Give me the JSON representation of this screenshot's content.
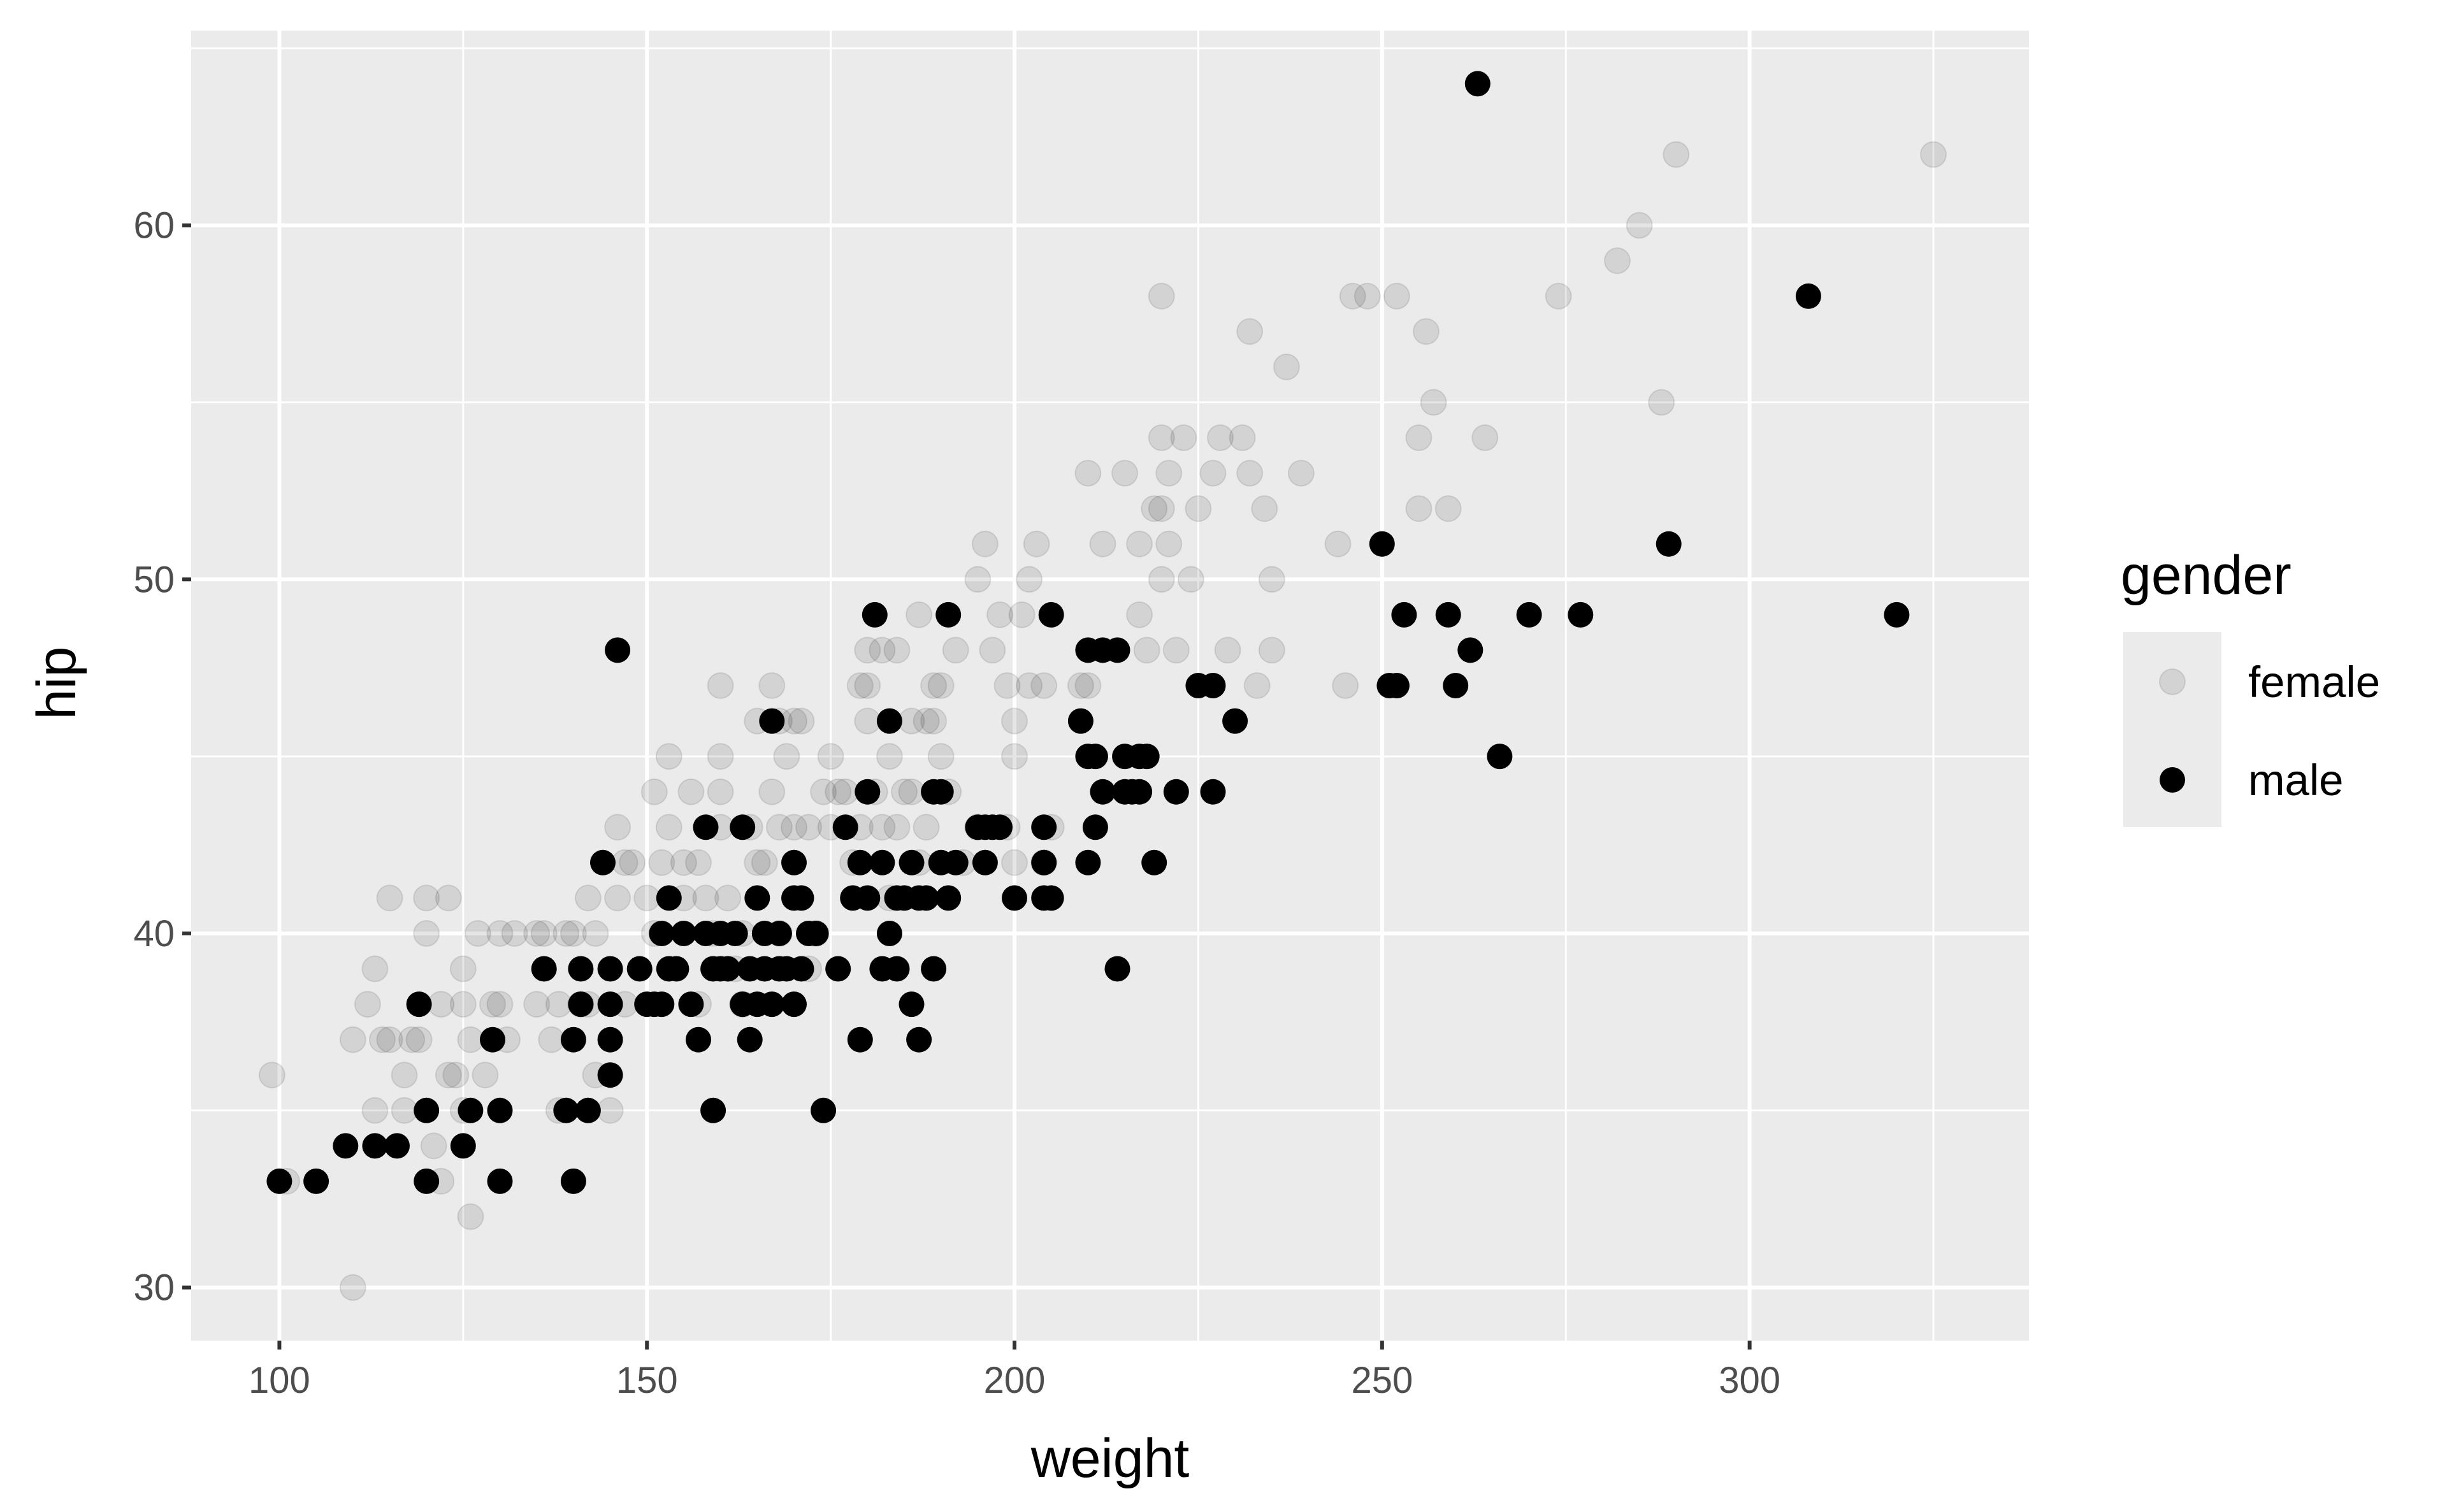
{
  "chart_data": {
    "type": "scatter",
    "title": "",
    "xlabel": "weight",
    "ylabel": "hip",
    "xlim": [
      88,
      338
    ],
    "ylim": [
      28.5,
      65.5
    ],
    "x_ticks": [
      100,
      150,
      200,
      250,
      300
    ],
    "y_ticks": [
      30,
      40,
      50,
      60
    ],
    "x_tick_labels": [
      "100",
      "150",
      "200",
      "250",
      "300"
    ],
    "y_tick_labels": [
      "30",
      "40",
      "50",
      "60"
    ],
    "grid": true,
    "legend": {
      "title": "gender",
      "placement": "right"
    },
    "colors": {
      "panel": "#ebebeb",
      "grid": "#ffffff",
      "female": "#000000",
      "male": "#000000"
    },
    "series": [
      {
        "name": "female",
        "opacity": 0.1,
        "points": [
          [
            99,
            36
          ],
          [
            101,
            33
          ],
          [
            110,
            30
          ],
          [
            110,
            37
          ],
          [
            112,
            38
          ],
          [
            113,
            39
          ],
          [
            113,
            35
          ],
          [
            114,
            37
          ],
          [
            115,
            37
          ],
          [
            115,
            41
          ],
          [
            117,
            36
          ],
          [
            117,
            35
          ],
          [
            118,
            37
          ],
          [
            119,
            37
          ],
          [
            120,
            41
          ],
          [
            120,
            40
          ],
          [
            121,
            34
          ],
          [
            122,
            33
          ],
          [
            122,
            38
          ],
          [
            123,
            36
          ],
          [
            123,
            41
          ],
          [
            124,
            36
          ],
          [
            125,
            35
          ],
          [
            125,
            38
          ],
          [
            125,
            39
          ],
          [
            126,
            32
          ],
          [
            126,
            37
          ],
          [
            127,
            40
          ],
          [
            128,
            36
          ],
          [
            129,
            38
          ],
          [
            130,
            38
          ],
          [
            130,
            40
          ],
          [
            131,
            37
          ],
          [
            132,
            40
          ],
          [
            135,
            38
          ],
          [
            135,
            40
          ],
          [
            136,
            40
          ],
          [
            137,
            37
          ],
          [
            138,
            35
          ],
          [
            138,
            38
          ],
          [
            139,
            40
          ],
          [
            140,
            40
          ],
          [
            141,
            38
          ],
          [
            142,
            38
          ],
          [
            142,
            41
          ],
          [
            143,
            36
          ],
          [
            143,
            40
          ],
          [
            145,
            35
          ],
          [
            146,
            43
          ],
          [
            146,
            41
          ],
          [
            147,
            42
          ],
          [
            147,
            38
          ],
          [
            148,
            42
          ],
          [
            150,
            41
          ],
          [
            151,
            40
          ],
          [
            151,
            44
          ],
          [
            152,
            42
          ],
          [
            153,
            45
          ],
          [
            153,
            43
          ],
          [
            155,
            41
          ],
          [
            155,
            42
          ],
          [
            156,
            44
          ],
          [
            157,
            38
          ],
          [
            157,
            42
          ],
          [
            158,
            41
          ],
          [
            159,
            40
          ],
          [
            160,
            47
          ],
          [
            160,
            43
          ],
          [
            160,
            44
          ],
          [
            160,
            45
          ],
          [
            161,
            41
          ],
          [
            162,
            39
          ],
          [
            163,
            38
          ],
          [
            163,
            40
          ],
          [
            164,
            43
          ],
          [
            165,
            46
          ],
          [
            165,
            42
          ],
          [
            166,
            42
          ],
          [
            167,
            47
          ],
          [
            167,
            44
          ],
          [
            168,
            46
          ],
          [
            168,
            43
          ],
          [
            168,
            40
          ],
          [
            169,
            45
          ],
          [
            170,
            46
          ],
          [
            170,
            43
          ],
          [
            171,
            46
          ],
          [
            172,
            43
          ],
          [
            172,
            39
          ],
          [
            173,
            40
          ],
          [
            174,
            44
          ],
          [
            175,
            43
          ],
          [
            175,
            45
          ],
          [
            176,
            44
          ],
          [
            177,
            44
          ],
          [
            178,
            42
          ],
          [
            179,
            47
          ],
          [
            179,
            43
          ],
          [
            180,
            48
          ],
          [
            180,
            47
          ],
          [
            180,
            46
          ],
          [
            181,
            44
          ],
          [
            182,
            43
          ],
          [
            182,
            48
          ],
          [
            183,
            45
          ],
          [
            183,
            41
          ],
          [
            184,
            43
          ],
          [
            184,
            48
          ],
          [
            185,
            44
          ],
          [
            186,
            46
          ],
          [
            186,
            44
          ],
          [
            187,
            49
          ],
          [
            187,
            42
          ],
          [
            188,
            43
          ],
          [
            188,
            46
          ],
          [
            189,
            46
          ],
          [
            189,
            47
          ],
          [
            190,
            45
          ],
          [
            190,
            47
          ],
          [
            191,
            44
          ],
          [
            192,
            48
          ],
          [
            193,
            42
          ],
          [
            195,
            43
          ],
          [
            195,
            50
          ],
          [
            196,
            51
          ],
          [
            197,
            48
          ],
          [
            198,
            49
          ],
          [
            199,
            47
          ],
          [
            199,
            43
          ],
          [
            200,
            45
          ],
          [
            200,
            46
          ],
          [
            200,
            42
          ],
          [
            201,
            49
          ],
          [
            202,
            47
          ],
          [
            202,
            50
          ],
          [
            203,
            51
          ],
          [
            204,
            47
          ],
          [
            204,
            42
          ],
          [
            205,
            43
          ],
          [
            209,
            47
          ],
          [
            210,
            53
          ],
          [
            210,
            47
          ],
          [
            212,
            51
          ],
          [
            215,
            53
          ],
          [
            217,
            51
          ],
          [
            217,
            49
          ],
          [
            218,
            48
          ],
          [
            219,
            52
          ],
          [
            220,
            52
          ],
          [
            220,
            54
          ],
          [
            220,
            50
          ],
          [
            220,
            58
          ],
          [
            221,
            53
          ],
          [
            221,
            51
          ],
          [
            222,
            48
          ],
          [
            223,
            54
          ],
          [
            224,
            50
          ],
          [
            225,
            52
          ],
          [
            227,
            53
          ],
          [
            228,
            54
          ],
          [
            229,
            48
          ],
          [
            231,
            54
          ],
          [
            232,
            53
          ],
          [
            232,
            57
          ],
          [
            233,
            47
          ],
          [
            234,
            52
          ],
          [
            235,
            50
          ],
          [
            235,
            48
          ],
          [
            237,
            56
          ],
          [
            239,
            53
          ],
          [
            244,
            51
          ],
          [
            245,
            47
          ],
          [
            246,
            58
          ],
          [
            248,
            58
          ],
          [
            252,
            58
          ],
          [
            255,
            52
          ],
          [
            255,
            54
          ],
          [
            256,
            57
          ],
          [
            257,
            55
          ],
          [
            259,
            52
          ],
          [
            264,
            54
          ],
          [
            274,
            58
          ],
          [
            282,
            59
          ],
          [
            285,
            60
          ],
          [
            288,
            55
          ],
          [
            290,
            62
          ],
          [
            325,
            62
          ]
        ]
      },
      {
        "name": "male",
        "opacity": 1,
        "points": [
          [
            100,
            33
          ],
          [
            105,
            33
          ],
          [
            109,
            34
          ],
          [
            113,
            34
          ],
          [
            116,
            34
          ],
          [
            119,
            38
          ],
          [
            120,
            35
          ],
          [
            120,
            33
          ],
          [
            125,
            34
          ],
          [
            126,
            35
          ],
          [
            129,
            37
          ],
          [
            130,
            35
          ],
          [
            130,
            33
          ],
          [
            136,
            39
          ],
          [
            139,
            35
          ],
          [
            140,
            33
          ],
          [
            140,
            37
          ],
          [
            141,
            38
          ],
          [
            141,
            39
          ],
          [
            142,
            35
          ],
          [
            144,
            42
          ],
          [
            145,
            39
          ],
          [
            145,
            38
          ],
          [
            145,
            37
          ],
          [
            145,
            36
          ],
          [
            146,
            48
          ],
          [
            149,
            39
          ],
          [
            150,
            38
          ],
          [
            151,
            38
          ],
          [
            152,
            40
          ],
          [
            152,
            38
          ],
          [
            153,
            41
          ],
          [
            153,
            39
          ],
          [
            154,
            39
          ],
          [
            155,
            40
          ],
          [
            156,
            38
          ],
          [
            157,
            37
          ],
          [
            158,
            43
          ],
          [
            158,
            40
          ],
          [
            159,
            39
          ],
          [
            159,
            35
          ],
          [
            160,
            39
          ],
          [
            160,
            40
          ],
          [
            161,
            39
          ],
          [
            162,
            40
          ],
          [
            163,
            38
          ],
          [
            163,
            43
          ],
          [
            164,
            37
          ],
          [
            164,
            39
          ],
          [
            165,
            38
          ],
          [
            165,
            41
          ],
          [
            166,
            40
          ],
          [
            166,
            39
          ],
          [
            167,
            46
          ],
          [
            167,
            38
          ],
          [
            168,
            39
          ],
          [
            168,
            40
          ],
          [
            169,
            39
          ],
          [
            170,
            41
          ],
          [
            170,
            42
          ],
          [
            170,
            38
          ],
          [
            171,
            39
          ],
          [
            171,
            41
          ],
          [
            172,
            40
          ],
          [
            173,
            40
          ],
          [
            174,
            35
          ],
          [
            176,
            39
          ],
          [
            177,
            43
          ],
          [
            178,
            41
          ],
          [
            179,
            37
          ],
          [
            179,
            42
          ],
          [
            180,
            41
          ],
          [
            180,
            44
          ],
          [
            181,
            49
          ],
          [
            182,
            42
          ],
          [
            182,
            39
          ],
          [
            183,
            46
          ],
          [
            183,
            40
          ],
          [
            184,
            41
          ],
          [
            184,
            39
          ],
          [
            185,
            41
          ],
          [
            186,
            38
          ],
          [
            186,
            42
          ],
          [
            187,
            41
          ],
          [
            187,
            37
          ],
          [
            188,
            41
          ],
          [
            189,
            44
          ],
          [
            189,
            39
          ],
          [
            190,
            44
          ],
          [
            190,
            42
          ],
          [
            191,
            49
          ],
          [
            191,
            41
          ],
          [
            192,
            42
          ],
          [
            195,
            43
          ],
          [
            196,
            42
          ],
          [
            196,
            43
          ],
          [
            197,
            43
          ],
          [
            198,
            43
          ],
          [
            200,
            41
          ],
          [
            204,
            43
          ],
          [
            204,
            42
          ],
          [
            204,
            41
          ],
          [
            205,
            49
          ],
          [
            205,
            41
          ],
          [
            209,
            46
          ],
          [
            210,
            48
          ],
          [
            210,
            45
          ],
          [
            210,
            42
          ],
          [
            211,
            43
          ],
          [
            211,
            45
          ],
          [
            212,
            48
          ],
          [
            212,
            44
          ],
          [
            214,
            48
          ],
          [
            214,
            39
          ],
          [
            215,
            45
          ],
          [
            215,
            44
          ],
          [
            216,
            44
          ],
          [
            217,
            45
          ],
          [
            217,
            44
          ],
          [
            218,
            45
          ],
          [
            219,
            42
          ],
          [
            222,
            44
          ],
          [
            225,
            47
          ],
          [
            227,
            44
          ],
          [
            227,
            47
          ],
          [
            230,
            46
          ],
          [
            250,
            51
          ],
          [
            251,
            47
          ],
          [
            252,
            47
          ],
          [
            253,
            49
          ],
          [
            259,
            49
          ],
          [
            260,
            47
          ],
          [
            262,
            48
          ],
          [
            263,
            64
          ],
          [
            266,
            45
          ],
          [
            270,
            49
          ],
          [
            277,
            49
          ],
          [
            289,
            51
          ],
          [
            308,
            58
          ],
          [
            320,
            49
          ]
        ]
      }
    ]
  }
}
